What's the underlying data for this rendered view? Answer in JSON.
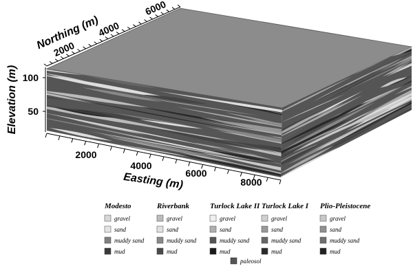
{
  "axes": {
    "elevation": {
      "label": "Elevation (m)",
      "ticks": [
        "50",
        "100"
      ]
    },
    "northing": {
      "label": "Northing (m)",
      "ticks": [
        "2000",
        "4000",
        "6000"
      ]
    },
    "easting": {
      "label": "Easting (m)",
      "ticks": [
        "2000",
        "4000",
        "6000",
        "8000"
      ]
    }
  },
  "legend": {
    "groups": [
      {
        "title": "Modesto",
        "items": [
          "gravel",
          "sand",
          "muddy sand",
          "mud"
        ]
      },
      {
        "title": "Riverbank",
        "items": [
          "gravel",
          "sand",
          "muddy sand",
          "mud"
        ]
      },
      {
        "title": "Turlock Lake II",
        "items": [
          "gravel",
          "sand",
          "muddy sand",
          "mud"
        ]
      },
      {
        "title": "Turlock Lake I",
        "items": [
          "gravel",
          "sand",
          "muddy sand",
          "mud"
        ]
      },
      {
        "title": "Plio-Pleistocene",
        "items": [
          "gravel",
          "sand",
          "muddy sand",
          "mud"
        ]
      }
    ],
    "extra": "paleosol"
  }
}
